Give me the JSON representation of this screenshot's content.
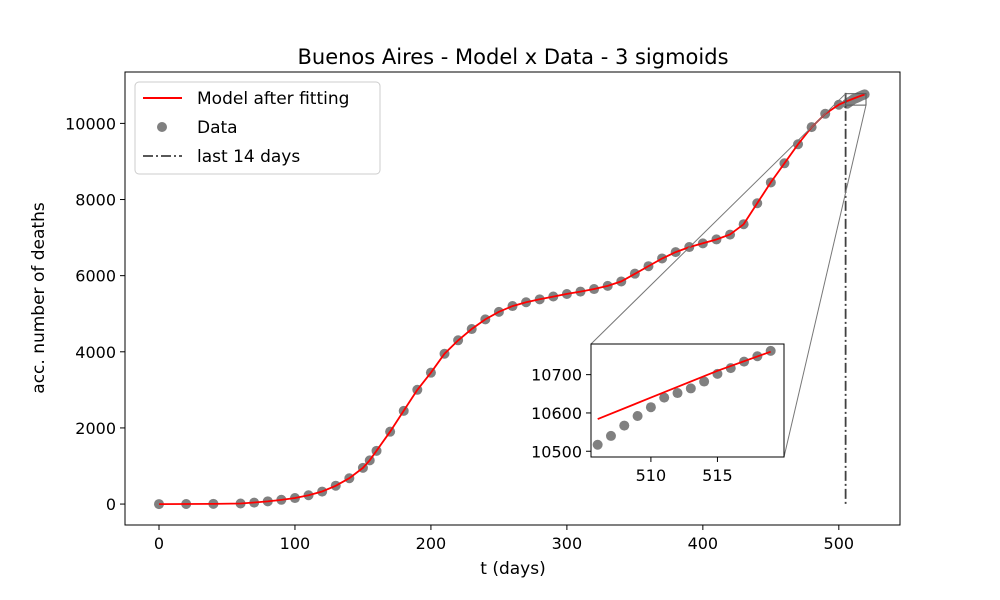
{
  "chart_data": {
    "type": "scatter",
    "title": "Buenos Aires - Model x Data - 3 sigmoids",
    "xlabel": "t (days)",
    "ylabel": "acc. number of deaths",
    "xlim": [
      -25,
      545
    ],
    "ylim": [
      -550,
      11350
    ],
    "xticks": [
      0,
      100,
      200,
      300,
      400,
      500
    ],
    "yticks": [
      0,
      2000,
      4000,
      6000,
      8000,
      10000
    ],
    "grid": false,
    "legend": {
      "placement": "top-left",
      "entries": [
        "Model after fitting",
        "Data",
        "last 14 days"
      ]
    },
    "colors": {
      "model": "#ff0000",
      "data": "#808080",
      "marker_line": "#404040"
    },
    "last_14_days_x": 505,
    "series": [
      {
        "name": "Model after fitting",
        "kind": "line",
        "x": [
          0,
          20,
          40,
          60,
          70,
          80,
          90,
          100,
          110,
          120,
          130,
          140,
          150,
          155,
          160,
          170,
          180,
          190,
          200,
          210,
          220,
          230,
          240,
          250,
          260,
          270,
          280,
          290,
          300,
          310,
          320,
          330,
          340,
          350,
          360,
          370,
          380,
          390,
          400,
          410,
          420,
          430,
          440,
          450,
          460,
          470,
          480,
          490,
          500,
          505,
          510,
          515,
          519
        ],
        "y": [
          0,
          2,
          5,
          15,
          40,
          70,
          110,
          160,
          230,
          330,
          480,
          680,
          950,
          1150,
          1400,
          1900,
          2450,
          3000,
          3450,
          3950,
          4300,
          4600,
          4850,
          5050,
          5200,
          5300,
          5380,
          5450,
          5520,
          5580,
          5650,
          5730,
          5850,
          6050,
          6250,
          6450,
          6620,
          6750,
          6850,
          6950,
          7080,
          7350,
          7900,
          8450,
          8950,
          9450,
          9900,
          10250,
          10490,
          10570,
          10640,
          10710,
          10760
        ]
      },
      {
        "name": "Data",
        "kind": "scatter",
        "x": [
          0,
          20,
          40,
          60,
          70,
          80,
          90,
          100,
          110,
          120,
          130,
          140,
          150,
          155,
          160,
          170,
          180,
          190,
          200,
          210,
          220,
          230,
          240,
          250,
          260,
          270,
          280,
          290,
          300,
          310,
          320,
          330,
          340,
          350,
          360,
          370,
          380,
          390,
          400,
          410,
          420,
          430,
          440,
          450,
          460,
          470,
          480,
          490,
          500,
          506,
          507,
          508,
          509,
          510,
          511,
          512,
          513,
          514,
          515,
          516,
          517,
          518,
          519
        ],
        "y": [
          0,
          2,
          6,
          15,
          38,
          72,
          112,
          158,
          232,
          328,
          482,
          678,
          952,
          1148,
          1398,
          1902,
          2448,
          3002,
          3452,
          3948,
          4302,
          4598,
          4852,
          5048,
          5202,
          5302,
          5378,
          5452,
          5518,
          5582,
          5648,
          5732,
          5848,
          6052,
          6248,
          6452,
          6618,
          6752,
          6848,
          6952,
          7078,
          7352,
          7902,
          8448,
          8952,
          9452,
          9902,
          10252,
          10490,
          10517,
          10540,
          10567,
          10592,
          10615,
          10640,
          10652,
          10664,
          10682,
          10702,
          10717,
          10734,
          10748,
          10762
        ]
      }
    ],
    "inset": {
      "xlim": [
        505.5,
        520
      ],
      "ylim": [
        10485,
        10780
      ],
      "xticks": [
        510,
        515
      ],
      "yticks": [
        10500,
        10600,
        10700
      ],
      "source_x_range": [
        505,
        520
      ],
      "source_y_range": [
        10480,
        10780
      ]
    }
  }
}
